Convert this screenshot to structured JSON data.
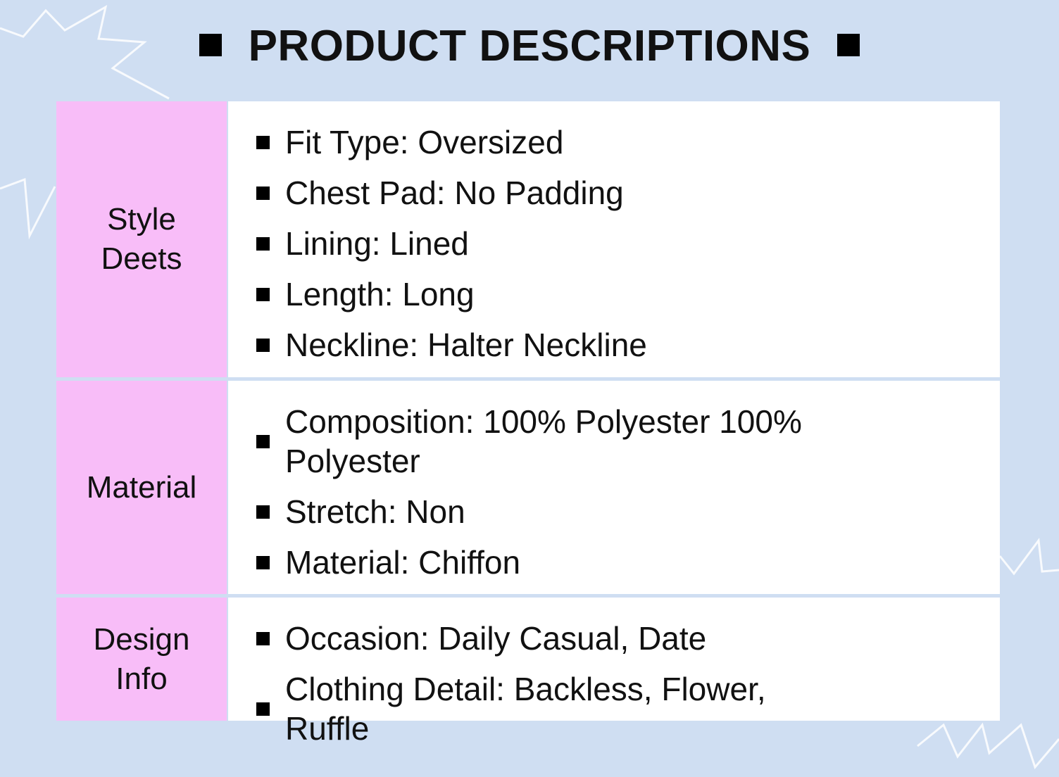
{
  "title": "PRODUCT DESCRIPTIONS",
  "colors": {
    "background": "#cfdef2",
    "label_bg": "#f8bdf8",
    "content_bg": "#ffffff"
  },
  "sections": [
    {
      "label": "Style\nDeets",
      "items": [
        "Fit Type: Oversized",
        "Chest Pad: No Padding",
        "Lining: Lined",
        "Length: Long",
        "Neckline: Halter Neckline"
      ]
    },
    {
      "label": "Material",
      "items": [
        "Composition: 100% Polyester 100% Polyester",
        "Stretch: Non",
        "Material: Chiffon"
      ]
    },
    {
      "label": "Design\nInfo",
      "items": [
        "Occasion: Daily Casual, Date",
        "Clothing Detail: Backless, Flower, Ruffle"
      ]
    }
  ]
}
